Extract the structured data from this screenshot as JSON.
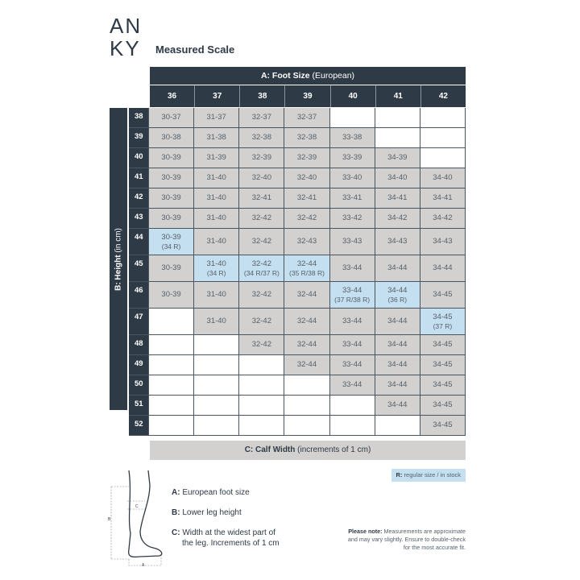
{
  "logo": {
    "line1": "AN",
    "line2": "KY"
  },
  "title": "Measured Scale",
  "foot_header": {
    "bold": "A: Foot Size",
    "rest": " (European)"
  },
  "height_header": {
    "bold": "B: Height",
    "rest": " (in cm)"
  },
  "calf_footer": {
    "bold": "C: Calf Width",
    "rest": " (increments of 1 cm)"
  },
  "colors": {
    "dark": "#2e3a46",
    "gray": "#d3d1cf",
    "regular": "#c4dff0"
  },
  "columns": [
    "36",
    "37",
    "38",
    "39",
    "40",
    "41",
    "42"
  ],
  "rows": [
    {
      "label": "38",
      "cells": [
        "30-37",
        "31-37",
        "32-37",
        "32-37",
        null,
        null,
        null
      ]
    },
    {
      "label": "39",
      "cells": [
        "30-38",
        "31-38",
        "32-38",
        "32-38",
        "33-38",
        null,
        null
      ]
    },
    {
      "label": "40",
      "cells": [
        "30-39",
        "31-39",
        "32-39",
        "32-39",
        "33-39",
        "34-39",
        null
      ]
    },
    {
      "label": "41",
      "cells": [
        "30-39",
        "31-40",
        "32-40",
        "32-40",
        "33-40",
        "34-40",
        "34-40"
      ]
    },
    {
      "label": "42",
      "cells": [
        "30-39",
        "31-40",
        "32-41",
        "32-41",
        "33-41",
        "34-41",
        "34-41"
      ]
    },
    {
      "label": "43",
      "cells": [
        "30-39",
        "31-40",
        "32-42",
        "32-42",
        "33-42",
        "34-42",
        "34-42"
      ]
    },
    {
      "label": "44",
      "cells": [
        {
          "v": "30-39",
          "r": "(34 R)"
        },
        "31-40",
        "32-42",
        "32-43",
        "33-43",
        "34-43",
        "34-43"
      ]
    },
    {
      "label": "45",
      "cells": [
        "30-39",
        {
          "v": "31-40",
          "r": "(34 R)"
        },
        {
          "v": "32-42",
          "r": "(34 R/37 R)"
        },
        {
          "v": "32-44",
          "r": "(35 R/38 R)"
        },
        "33-44",
        "34-44",
        "34-44"
      ]
    },
    {
      "label": "46",
      "cells": [
        "30-39",
        "31-40",
        "32-42",
        "32-44",
        {
          "v": "33-44",
          "r": "(37 R/38 R)"
        },
        {
          "v": "34-44",
          "r": "(36 R)"
        },
        "34-45"
      ]
    },
    {
      "label": "47",
      "cells": [
        null,
        "31-40",
        "32-42",
        "32-44",
        "33-44",
        "34-44",
        {
          "v": "34-45",
          "r": "(37 R)"
        }
      ]
    },
    {
      "label": "48",
      "cells": [
        null,
        null,
        "32-42",
        "32-44",
        "33-44",
        "34-44",
        "34-45"
      ]
    },
    {
      "label": "49",
      "cells": [
        null,
        null,
        null,
        "32-44",
        "33-44",
        "34-44",
        "34-45"
      ]
    },
    {
      "label": "50",
      "cells": [
        null,
        null,
        null,
        null,
        "33-44",
        "34-44",
        "34-45"
      ]
    },
    {
      "label": "51",
      "cells": [
        null,
        null,
        null,
        null,
        null,
        "34-44",
        "34-45"
      ]
    },
    {
      "label": "52",
      "cells": [
        null,
        null,
        null,
        null,
        null,
        null,
        "34-45"
      ]
    }
  ],
  "regular_key": {
    "bold": "R:",
    "rest": " regular size / in stock"
  },
  "legend": [
    {
      "key": "A:",
      "text": " European foot size"
    },
    {
      "key": "B:",
      "text": " Lower leg height"
    },
    {
      "key": "C:",
      "text": " Width at the widest part of",
      "text2": "the leg. Increments of 1 cm"
    }
  ],
  "diagram_labels": {
    "a": "A",
    "b": "B",
    "c": "C"
  },
  "note": {
    "bold": "Please note:",
    "rest": " Measurements are approximate and may vary slightly. Ensure to double-check for the most accurate fit."
  }
}
